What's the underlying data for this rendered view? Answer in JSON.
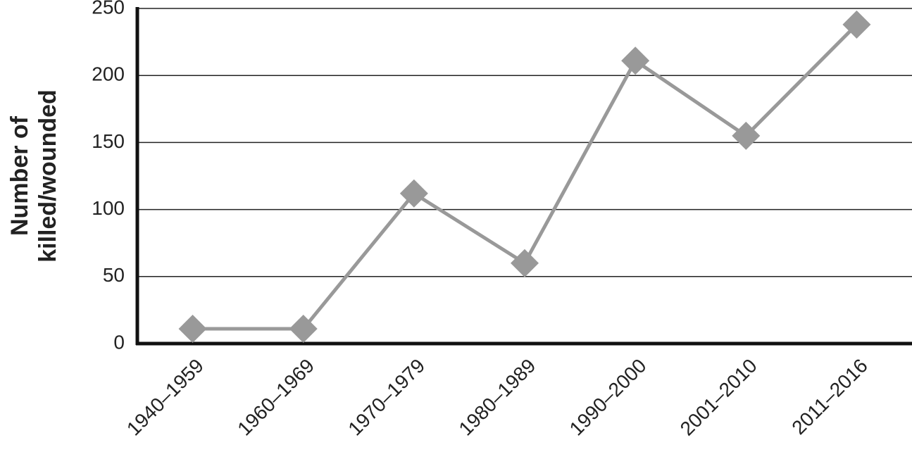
{
  "chart_data": {
    "type": "line",
    "ylabel": [
      "Number of",
      "killed/wounded"
    ],
    "categories": [
      "1940–1959",
      "1960–1969",
      "1970–1979",
      "1980–1989",
      "1990–2000",
      "2001–2010",
      "2011–2016"
    ],
    "values": [
      11,
      11,
      112,
      60,
      211,
      155,
      238
    ],
    "color": "#999999",
    "ylim": [
      0,
      250
    ],
    "yticks": [
      0,
      50,
      100,
      150,
      200,
      250
    ],
    "grid": true
  }
}
